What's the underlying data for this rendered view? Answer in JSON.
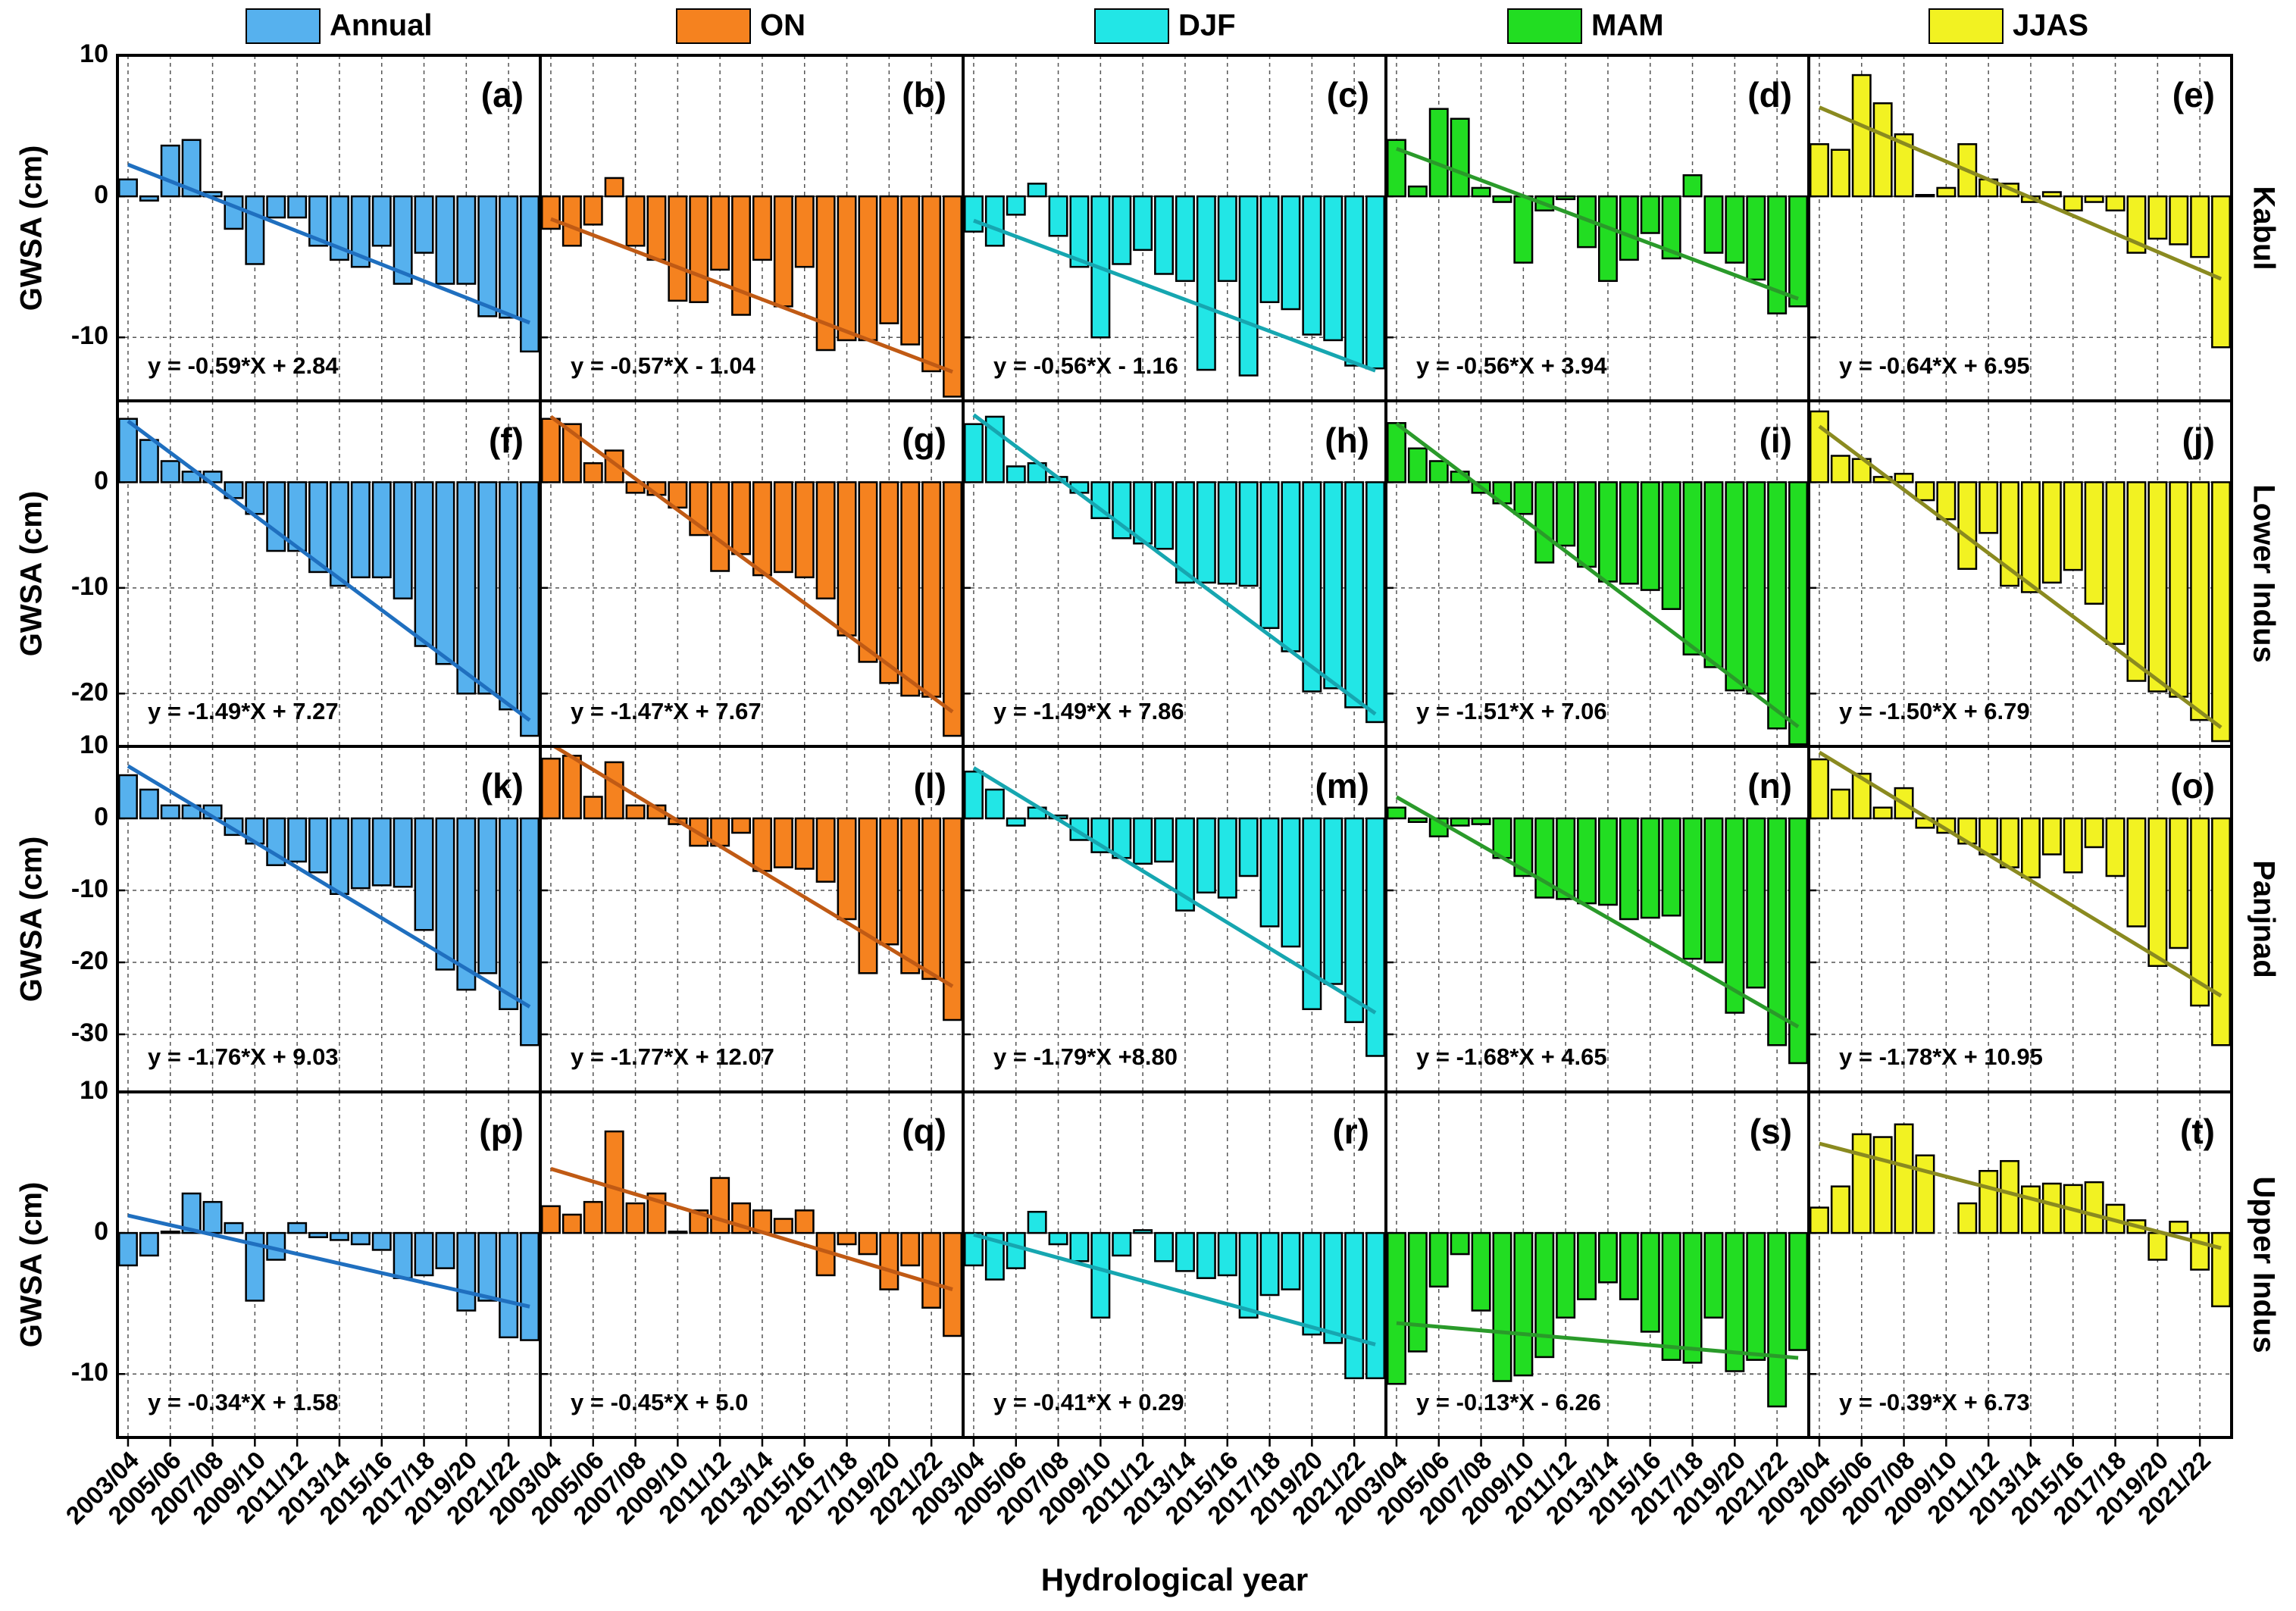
{
  "chart_data": {
    "type": "bar",
    "x_label": "Hydrological year",
    "grid": true,
    "categories": [
      "2003/04",
      null,
      "2005/06",
      null,
      "2007/08",
      null,
      "2009/10",
      null,
      "2011/12",
      null,
      "2013/14",
      null,
      "2015/16",
      null,
      "2017/18",
      null,
      "2019/20",
      null,
      "2021/22",
      null
    ],
    "columns": [
      {
        "name": "Annual",
        "color": "#56b1ee",
        "line_color": "#1f6fbf"
      },
      {
        "name": "ON",
        "color": "#f5821f",
        "line_color": "#c05a14"
      },
      {
        "name": "DJF",
        "color": "#22e6e6",
        "line_color": "#16a6b0"
      },
      {
        "name": "MAM",
        "color": "#22dd22",
        "line_color": "#2a9a2a"
      },
      {
        "name": "JJAS",
        "color": "#f2f222",
        "line_color": "#8a8a20"
      }
    ],
    "rows": [
      {
        "name": "Kabul",
        "y_label": "GWSA (cm)",
        "ylim": [
          -14.5,
          10
        ],
        "yticks": [
          -10,
          0,
          10
        ],
        "panels": [
          {
            "label": "(a)",
            "values": [
              1.2,
              -0.3,
              3.6,
              4.0,
              0.3,
              -2.3,
              -4.8,
              -1.5,
              -1.5,
              -3.5,
              -4.5,
              -5.0,
              -3.5,
              -6.2,
              -4.0,
              -6.2,
              -6.2,
              -8.5,
              -8.6,
              -11.0
            ],
            "fit": {
              "slope": -0.59,
              "intercept": 2.84,
              "equation": "y = -0.59*X + 2.84"
            }
          },
          {
            "label": "(b)",
            "values": [
              -2.3,
              -3.5,
              -2.0,
              1.3,
              -3.5,
              -4.5,
              -7.4,
              -7.5,
              -5.2,
              -8.4,
              -4.5,
              -7.8,
              -5.0,
              -10.9,
              -10.2,
              -10.2,
              -9.0,
              -10.5,
              -12.4,
              -14.2
            ],
            "fit": {
              "slope": -0.57,
              "intercept": -1.04,
              "equation": "y = -0.57*X - 1.04"
            }
          },
          {
            "label": "(c)",
            "values": [
              -2.5,
              -3.5,
              -1.3,
              0.9,
              -2.8,
              -5.0,
              -10.0,
              -4.8,
              -3.8,
              -5.5,
              -6.0,
              -12.3,
              -6.0,
              -12.7,
              -7.5,
              -8.0,
              -9.8,
              -10.2,
              -12.0,
              -12.2
            ],
            "fit": {
              "slope": -0.56,
              "intercept": -1.16,
              "equation": "y = -0.56*X - 1.16"
            }
          },
          {
            "label": "(d)",
            "values": [
              4.0,
              0.7,
              6.2,
              5.5,
              0.6,
              -0.4,
              -4.7,
              -1.0,
              -0.2,
              -3.6,
              -6.0,
              -4.5,
              -2.6,
              -4.4,
              1.5,
              -4.0,
              -4.7,
              -5.9,
              -8.3,
              -7.8
            ],
            "fit": {
              "slope": -0.56,
              "intercept": 3.94,
              "equation": "y = -0.56*X + 3.94"
            }
          },
          {
            "label": "(e)",
            "values": [
              3.7,
              3.3,
              8.6,
              6.6,
              4.4,
              0.1,
              0.6,
              3.7,
              1.2,
              0.9,
              -0.4,
              0.3,
              -1.0,
              -0.4,
              -1.0,
              -4.0,
              -3.0,
              -3.4,
              -4.3,
              -10.7
            ],
            "fit": {
              "slope": -0.64,
              "intercept": 6.95,
              "equation": "y = -0.64*X + 6.95"
            }
          }
        ]
      },
      {
        "name": "Lower Indus",
        "y_label": "GWSA (cm)",
        "ylim": [
          -25,
          7.7
        ],
        "yticks": [
          -20,
          -10,
          0
        ],
        "panels": [
          {
            "label": "(f)",
            "values": [
              6.0,
              4.0,
              2.0,
              1.0,
              1.0,
              -1.5,
              -3.0,
              -6.5,
              -6.5,
              -8.5,
              -9.8,
              -9.0,
              -9.0,
              -11.0,
              -15.5,
              -17.2,
              -20.0,
              -20.0,
              -21.5,
              -24.0
            ],
            "fit": {
              "slope": -1.49,
              "intercept": 7.27,
              "equation": "y = -1.49*X + 7.27"
            }
          },
          {
            "label": "(g)",
            "values": [
              6.0,
              5.5,
              1.8,
              3.0,
              -1.0,
              -1.2,
              -2.4,
              -5.0,
              -8.4,
              -6.8,
              -8.8,
              -8.5,
              -9.0,
              -11.0,
              -14.5,
              -17.0,
              -19.0,
              -20.2,
              -20.3,
              -24.0
            ],
            "fit": {
              "slope": -1.47,
              "intercept": 7.67,
              "equation": "y = -1.47*X + 7.67"
            }
          },
          {
            "label": "(h)",
            "values": [
              5.5,
              6.2,
              1.5,
              1.8,
              0.5,
              -1.0,
              -3.4,
              -5.3,
              -5.8,
              -6.3,
              -9.5,
              -9.5,
              -9.6,
              -9.8,
              -13.8,
              -16.0,
              -19.8,
              -19.5,
              -21.3,
              -22.7
            ],
            "fit": {
              "slope": -1.49,
              "intercept": 7.86,
              "equation": "y = -1.49*X + 7.86"
            }
          },
          {
            "label": "(i)",
            "values": [
              5.6,
              3.2,
              2.0,
              1.0,
              -1.0,
              -2.0,
              -3.0,
              -7.6,
              -6.0,
              -8.0,
              -9.4,
              -9.6,
              -10.2,
              -12.0,
              -16.3,
              -17.5,
              -19.7,
              -20.0,
              -23.3,
              -24.8
            ],
            "fit": {
              "slope": -1.51,
              "intercept": 7.06,
              "equation": "y = -1.51*X + 7.06"
            }
          },
          {
            "label": "(j)",
            "values": [
              6.7,
              2.5,
              2.2,
              0.5,
              0.8,
              -1.7,
              -3.5,
              -8.2,
              -4.8,
              -9.8,
              -10.4,
              -9.5,
              -8.3,
              -11.5,
              -15.3,
              -18.8,
              -19.8,
              -20.3,
              -22.5,
              -24.5
            ],
            "fit": {
              "slope": -1.5,
              "intercept": 6.79,
              "equation": "y = -1.50*X + 6.79"
            }
          }
        ]
      },
      {
        "name": "Panjnad",
        "y_label": "GWSA (cm)",
        "ylim": [
          -38,
          10
        ],
        "yticks": [
          -30,
          -20,
          -10,
          0,
          10
        ],
        "panels": [
          {
            "label": "(k)",
            "values": [
              6.0,
              4.0,
              1.8,
              1.8,
              1.8,
              -2.3,
              -3.5,
              -6.5,
              -6.0,
              -7.5,
              -10.5,
              -9.7,
              -9.3,
              -9.5,
              -15.5,
              -21.0,
              -23.8,
              -21.5,
              -26.5,
              -31.5
            ],
            "fit": {
              "slope": -1.76,
              "intercept": 9.03,
              "equation": "y = -1.76*X + 9.03"
            }
          },
          {
            "label": "(l)",
            "values": [
              8.3,
              8.7,
              3.0,
              7.8,
              1.8,
              1.8,
              -0.8,
              -3.8,
              -3.8,
              -2.0,
              -7.3,
              -6.8,
              -7.0,
              -8.8,
              -14.0,
              -21.5,
              -17.5,
              -21.5,
              -22.3,
              -28.0
            ],
            "fit": {
              "slope": -1.77,
              "intercept": 12.07,
              "equation": "y = -1.77*X + 12.07"
            }
          },
          {
            "label": "(m)",
            "values": [
              6.5,
              4.0,
              -1.0,
              1.5,
              0.4,
              -3.0,
              -4.7,
              -5.5,
              -6.3,
              -6.0,
              -12.8,
              -10.3,
              -11.0,
              -8.0,
              -15.0,
              -17.8,
              -26.5,
              -23.0,
              -28.3,
              -33.0
            ],
            "fit": {
              "slope": -1.79,
              "intercept": 8.8,
              "equation": "y = -1.79*X +8.80"
            }
          },
          {
            "label": "(n)",
            "values": [
              1.5,
              -0.5,
              -2.5,
              -1.0,
              -0.8,
              -5.5,
              -8.0,
              -11.0,
              -11.2,
              -11.8,
              -12.0,
              -14.0,
              -13.8,
              -13.5,
              -19.5,
              -20.0,
              -27.0,
              -23.5,
              -31.5,
              -34.0
            ],
            "fit": {
              "slope": -1.68,
              "intercept": 4.65,
              "equation": "y = -1.68*X + 4.65"
            }
          },
          {
            "label": "(o)",
            "values": [
              8.2,
              4.0,
              6.2,
              1.5,
              4.2,
              -1.3,
              -2.0,
              -3.5,
              -5.0,
              -6.8,
              -8.2,
              -5.0,
              -7.5,
              -4.0,
              -8.0,
              -15.0,
              -20.5,
              -18.0,
              -26.0,
              -31.5
            ],
            "fit": {
              "slope": -1.78,
              "intercept": 10.95,
              "equation": "y = -1.78*X + 10.95"
            }
          }
        ]
      },
      {
        "name": "Upper Indus",
        "y_label": "GWSA (cm)",
        "ylim": [
          -14.5,
          10
        ],
        "yticks": [
          -10,
          0,
          10
        ],
        "panels": [
          {
            "label": "(p)",
            "values": [
              -2.3,
              -1.6,
              0.1,
              2.8,
              2.2,
              0.7,
              -4.8,
              -1.9,
              0.7,
              -0.3,
              -0.5,
              -0.8,
              -1.2,
              -3.2,
              -3.0,
              -2.5,
              -5.5,
              -4.8,
              -7.4,
              -7.6
            ],
            "fit": {
              "slope": -0.34,
              "intercept": 1.58,
              "equation": "y = -0.34*X + 1.58"
            }
          },
          {
            "label": "(q)",
            "values": [
              1.9,
              1.3,
              2.2,
              7.2,
              2.1,
              2.8,
              0.1,
              1.6,
              3.9,
              2.1,
              1.6,
              1.0,
              1.6,
              -3.0,
              -0.8,
              -1.5,
              -4.0,
              -2.3,
              -5.3,
              -7.3
            ],
            "fit": {
              "slope": -0.45,
              "intercept": 5.0,
              "equation": "y = -0.45*X + 5.0"
            }
          },
          {
            "label": "(r)",
            "values": [
              -2.3,
              -3.3,
              -2.5,
              1.5,
              -0.8,
              -2.0,
              -6.0,
              -1.6,
              0.2,
              -2.0,
              -2.7,
              -3.2,
              -3.0,
              -6.0,
              -4.4,
              -4.0,
              -7.2,
              -7.8,
              -10.3,
              -10.3
            ],
            "fit": {
              "slope": -0.41,
              "intercept": 0.29,
              "equation": "y = -0.41*X + 0.29"
            }
          },
          {
            "label": "(s)",
            "values": [
              -10.7,
              -8.4,
              -3.8,
              -1.5,
              -5.5,
              -10.5,
              -10.1,
              -8.8,
              -6.0,
              -4.7,
              -3.5,
              -4.7,
              -7.0,
              -9.0,
              -9.2,
              -6.0,
              -9.8,
              -9.0,
              -12.3,
              -8.3
            ],
            "fit": {
              "slope": -0.13,
              "intercept": -6.26,
              "equation": "y = -0.13*X - 6.26"
            }
          },
          {
            "label": "(t)",
            "values": [
              1.8,
              3.3,
              7.0,
              6.8,
              7.7,
              5.5,
              0.0,
              2.1,
              4.4,
              5.1,
              3.3,
              3.5,
              3.4,
              3.6,
              2.0,
              0.9,
              -1.9,
              0.8,
              -2.6,
              -5.2
            ],
            "fit": {
              "slope": -0.39,
              "intercept": 6.73,
              "equation": "y = -0.39*X + 6.73"
            }
          }
        ]
      }
    ]
  }
}
